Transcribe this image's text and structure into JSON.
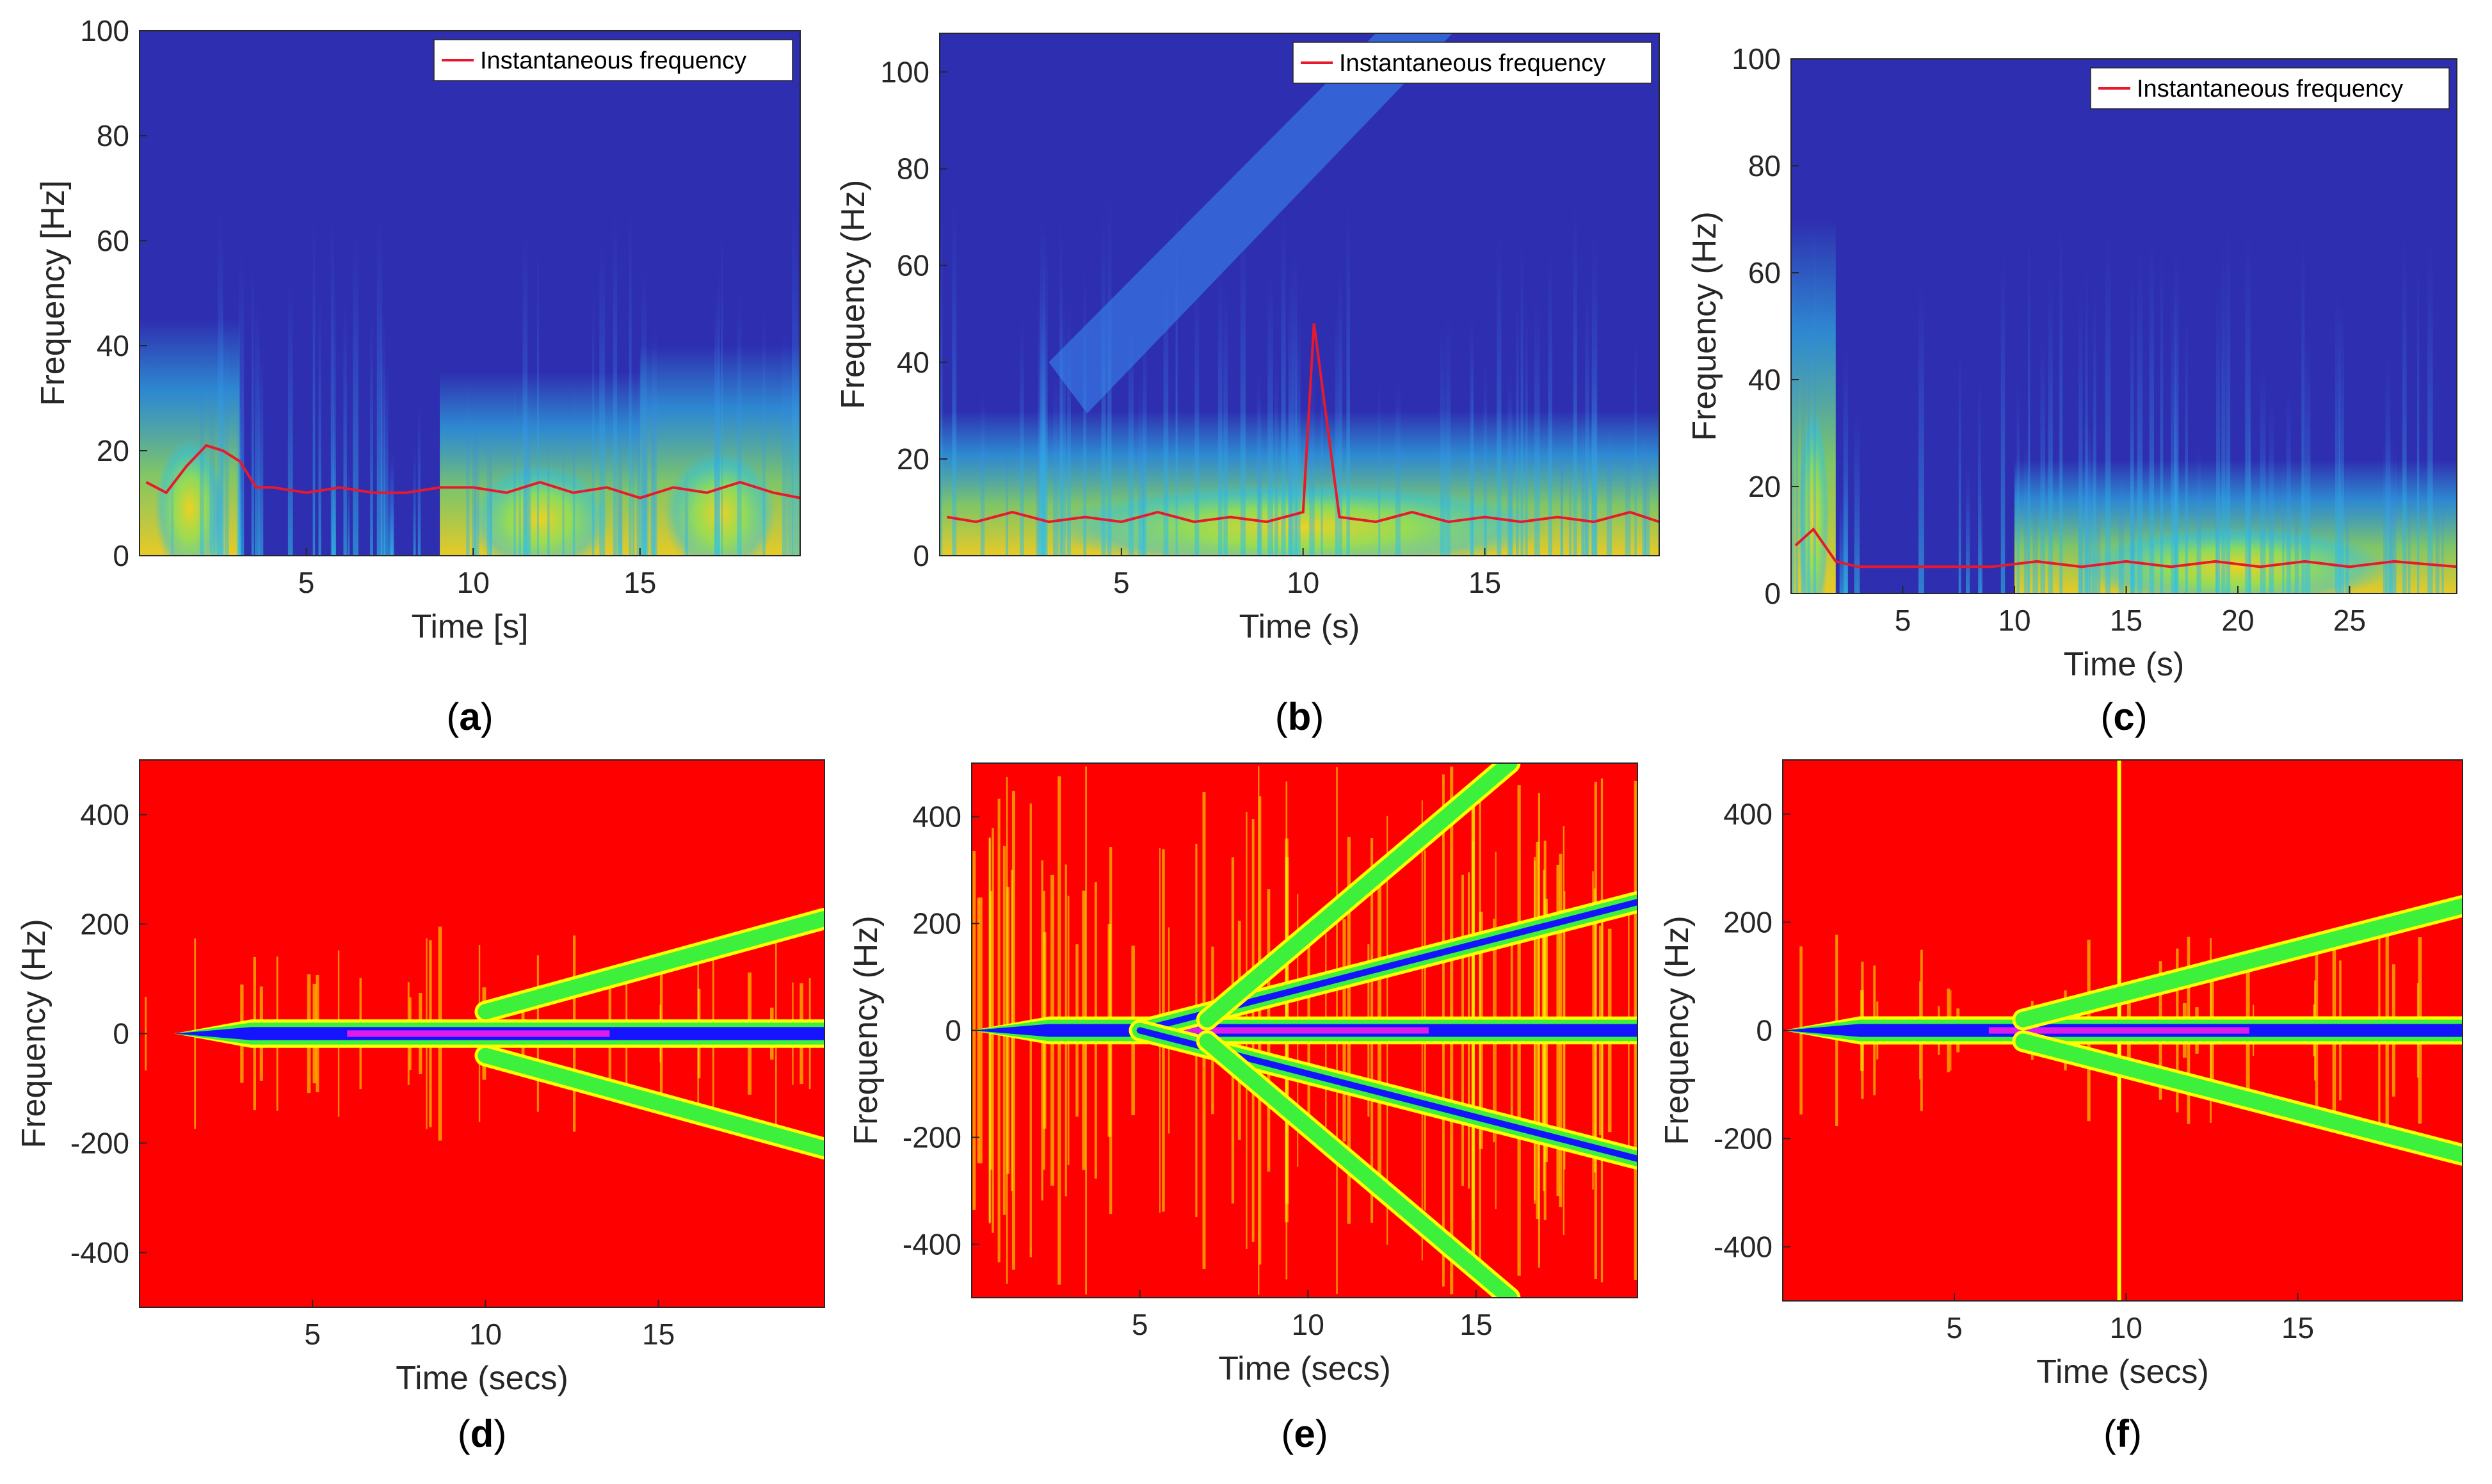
{
  "figure": {
    "colors": {
      "cwt_background": "#2e2eb0",
      "cwt_cyan": "#2ec4e6",
      "cwt_green": "#8ee05a",
      "cwt_yellow": "#f2d21e",
      "instantaneous_line": "#e8192c",
      "tfd_background": "#ff0000",
      "tfd_yellow": "#ffff00",
      "tfd_green": "#3cf03c",
      "tfd_blue": "#1414ff",
      "tfd_magenta": "#ff1fe6"
    }
  },
  "chart_data": [
    {
      "id": "a",
      "panel_label": "(a)",
      "panel_letter": "a",
      "type": "heatmap",
      "title": "",
      "xlabel": "Time [s]",
      "ylabel": "Frequency [Hz]",
      "xlim": [
        0,
        19.8
      ],
      "ylim": [
        0,
        100
      ],
      "xticks": [
        5,
        10,
        15
      ],
      "yticks": [
        0,
        20,
        40,
        60,
        80,
        100
      ],
      "legend": {
        "entries": [
          "Instantaneous frequency"
        ],
        "location": "top-right"
      },
      "instantaneous_frequency": {
        "t": [
          0.2,
          0.8,
          1.4,
          2.0,
          2.5,
          3.0,
          3.5,
          4,
          5,
          6,
          7,
          8,
          9,
          10,
          11,
          12,
          13,
          14,
          15,
          16,
          17,
          18,
          19,
          19.8
        ],
        "f": [
          14,
          12,
          17,
          21,
          20,
          18,
          13,
          13,
          12,
          13,
          12,
          12,
          13,
          13,
          12,
          14,
          12,
          13,
          11,
          13,
          12,
          14,
          12,
          11
        ]
      },
      "energy_regions": [
        {
          "t": [
            0,
            3
          ],
          "f": [
            0,
            45
          ],
          "level": "high",
          "note": "onset energy"
        },
        {
          "t": [
            9,
            15
          ],
          "f": [
            0,
            35
          ],
          "level": "high"
        },
        {
          "t": [
            15,
            19.8
          ],
          "f": [
            0,
            40
          ],
          "level": "high"
        }
      ]
    },
    {
      "id": "b",
      "panel_label": "(b)",
      "panel_letter": "b",
      "type": "heatmap",
      "title": "",
      "xlabel": "Time (s)",
      "ylabel": "Frequency (Hz)",
      "xlim": [
        0,
        19.8
      ],
      "ylim": [
        0,
        108
      ],
      "xticks": [
        5,
        10,
        15
      ],
      "yticks": [
        0,
        20,
        40,
        60,
        80,
        100
      ],
      "legend": {
        "entries": [
          "Instantaneous frequency"
        ],
        "location": "top-right"
      },
      "instantaneous_frequency": {
        "t": [
          0.2,
          1,
          2,
          3,
          4,
          5,
          6,
          7,
          8,
          9,
          10,
          10.3,
          11,
          12,
          13,
          14,
          15,
          16,
          17,
          18,
          19,
          19.8
        ],
        "f": [
          8,
          7,
          9,
          7,
          8,
          7,
          9,
          7,
          8,
          7,
          9,
          48,
          8,
          7,
          9,
          7,
          8,
          7,
          8,
          7,
          9,
          7
        ]
      },
      "energy_regions": [
        {
          "t": [
            0,
            19.8
          ],
          "f": [
            0,
            30
          ],
          "level": "high"
        },
        {
          "t": [
            3,
            12
          ],
          "f": [
            40,
            108
          ],
          "level": "medium",
          "note": "rising chirp band"
        }
      ]
    },
    {
      "id": "c",
      "panel_label": "(c)",
      "panel_letter": "c",
      "type": "heatmap",
      "title": "",
      "xlabel": "Time (s)",
      "ylabel": "Frequency (Hz)",
      "xlim": [
        0,
        29.8
      ],
      "ylim": [
        0,
        100
      ],
      "xticks": [
        5,
        10,
        15,
        20,
        25
      ],
      "yticks": [
        0,
        20,
        40,
        60,
        80,
        100
      ],
      "legend": {
        "entries": [
          "Instantaneous frequency"
        ],
        "location": "top-right"
      },
      "instantaneous_frequency": {
        "t": [
          0.2,
          1,
          2,
          3,
          5,
          7,
          9,
          11,
          13,
          15,
          17,
          19,
          21,
          23,
          25,
          27,
          29.8
        ],
        "f": [
          9,
          12,
          6,
          5,
          5,
          5,
          5,
          6,
          5,
          6,
          5,
          6,
          5,
          6,
          5,
          6,
          5
        ]
      },
      "energy_regions": [
        {
          "t": [
            0,
            2
          ],
          "f": [
            0,
            70
          ],
          "level": "medium"
        },
        {
          "t": [
            10,
            29.8
          ],
          "f": [
            0,
            25
          ],
          "level": "high"
        }
      ]
    },
    {
      "id": "d",
      "panel_label": "(d)",
      "panel_letter": "d",
      "type": "heatmap",
      "title": "",
      "xlabel": "Time (secs)",
      "ylabel": "Frequency (Hz)",
      "xlim": [
        0,
        19.8
      ],
      "ylim": [
        -500,
        500
      ],
      "xticks": [
        5,
        10,
        15
      ],
      "yticks": [
        400,
        200,
        0,
        -200,
        -400
      ],
      "ridges": [
        {
          "name": "central",
          "t": [
            1,
            19.8
          ],
          "f0": 0,
          "f1": 0
        },
        {
          "name": "upper-chirp",
          "t": [
            10,
            19.8
          ],
          "f0": 40,
          "f1": 210
        },
        {
          "name": "lower-chirp",
          "t": [
            10,
            19.8
          ],
          "f0": -40,
          "f1": -210
        }
      ]
    },
    {
      "id": "e",
      "panel_label": "(e)",
      "panel_letter": "e",
      "type": "heatmap",
      "title": "",
      "xlabel": "Time (secs)",
      "ylabel": "Frequency (Hz)",
      "xlim": [
        0,
        19.8
      ],
      "ylim": [
        -500,
        500
      ],
      "xticks": [
        5,
        10,
        15
      ],
      "yticks": [
        400,
        200,
        0,
        -200,
        -400
      ],
      "ridges": [
        {
          "name": "central",
          "t": [
            0,
            19.8
          ],
          "f0": 0,
          "f1": 0
        },
        {
          "name": "upper-chirp-1",
          "t": [
            5,
            19.8
          ],
          "f0": 0,
          "f1": 240
        },
        {
          "name": "lower-chirp-1",
          "t": [
            5,
            19.8
          ],
          "f0": 0,
          "f1": -240
        },
        {
          "name": "upper-chirp-2",
          "t": [
            7,
            16
          ],
          "f0": 20,
          "f1": 500
        },
        {
          "name": "lower-chirp-2",
          "t": [
            7,
            16
          ],
          "f0": -20,
          "f1": -500
        }
      ]
    },
    {
      "id": "f",
      "panel_label": "(f)",
      "panel_letter": "f",
      "type": "heatmap",
      "title": "",
      "xlabel": "Time (secs)",
      "ylabel": "Frequency (Hz)",
      "xlim": [
        0,
        19.8
      ],
      "ylim": [
        -500,
        500
      ],
      "xticks": [
        5,
        10,
        15
      ],
      "yticks": [
        400,
        200,
        0,
        -200,
        -400
      ],
      "ridges": [
        {
          "name": "central",
          "t": [
            0,
            19.8
          ],
          "f0": 0,
          "f1": 0
        },
        {
          "name": "upper-chirp",
          "t": [
            7,
            19.8
          ],
          "f0": 20,
          "f1": 230
        },
        {
          "name": "lower-chirp",
          "t": [
            7,
            19.8
          ],
          "f0": -20,
          "f1": -230
        }
      ],
      "events": [
        {
          "t": 9.8,
          "f": [
            -500,
            500
          ]
        }
      ]
    }
  ]
}
